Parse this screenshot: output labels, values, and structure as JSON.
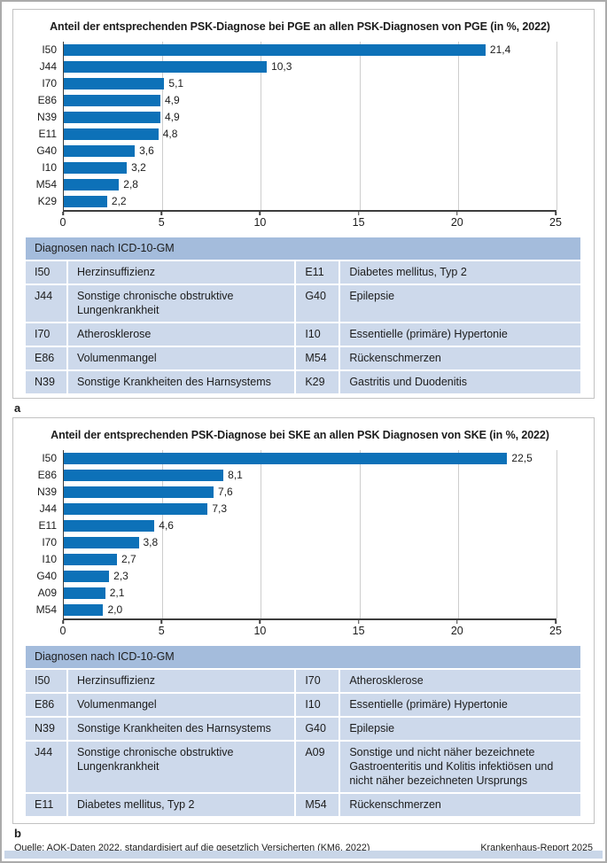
{
  "colors": {
    "bar_blue": "#0d71b8",
    "table_header_bg": "#a4bcdc",
    "table_row_bg": "#cdd9eb",
    "footer_band_bg": "#c9d6e8"
  },
  "labels": {
    "panel_a": "a",
    "panel_b": "b"
  },
  "footer": {
    "source": "Quelle: AOK-Daten 2022, standardisiert auf die gesetzlich Versicherten (KM6, 2022)",
    "report": "Krankenhaus-Report 2025"
  },
  "chart_data": [
    {
      "type": "bar",
      "orientation": "horizontal",
      "title": "Anteil der entsprechenden PSK-Diagnose bei PGE an allen PSK-Diagnosen von PGE (in %, 2022)",
      "categories": [
        "I50",
        "J44",
        "I70",
        "E86",
        "N39",
        "E11",
        "G40",
        "I10",
        "M54",
        "K29"
      ],
      "values": [
        21.4,
        10.3,
        5.1,
        4.9,
        4.9,
        4.8,
        3.6,
        3.2,
        2.8,
        2.2
      ],
      "value_labels": [
        "21,4",
        "10,3",
        "5,1",
        "4,9",
        "4,9",
        "4,8",
        "3,6",
        "3,2",
        "2,8",
        "2,2"
      ],
      "xlabel": "",
      "ylabel": "",
      "xlim": [
        0,
        25
      ],
      "xticks": [
        0,
        5,
        10,
        15,
        20,
        25
      ],
      "grid": true,
      "legend": false
    },
    {
      "type": "bar",
      "orientation": "horizontal",
      "title": "Anteil der entsprechenden PSK-Diagnose bei SKE an allen PSK Diagnosen von SKE (in %, 2022)",
      "categories": [
        "I50",
        "E86",
        "N39",
        "J44",
        "E11",
        "I70",
        "I10",
        "G40",
        "A09",
        "M54"
      ],
      "values": [
        22.5,
        8.1,
        7.6,
        7.3,
        4.6,
        3.8,
        2.7,
        2.3,
        2.1,
        2.0
      ],
      "value_labels": [
        "22,5",
        "8,1",
        "7,6",
        "7,3",
        "4,6",
        "3,8",
        "2,7",
        "2,3",
        "2,1",
        "2,0"
      ],
      "xlabel": "",
      "ylabel": "",
      "xlim": [
        0,
        25
      ],
      "xticks": [
        0,
        5,
        10,
        15,
        20,
        25
      ],
      "grid": true,
      "legend": false
    }
  ],
  "tables": [
    {
      "header": "Diagnosen nach ICD-10-GM",
      "rows": [
        [
          {
            "code": "I50",
            "label": "Herzinsuffizienz"
          },
          {
            "code": "E11",
            "label": "Diabetes mellitus, Typ 2"
          }
        ],
        [
          {
            "code": "J44",
            "label": "Sonstige chronische obstruktive Lungenkrankheit"
          },
          {
            "code": "G40",
            "label": "Epilepsie"
          }
        ],
        [
          {
            "code": "I70",
            "label": "Atherosklerose"
          },
          {
            "code": "I10",
            "label": "Essentielle (primäre) Hypertonie"
          }
        ],
        [
          {
            "code": "E86",
            "label": "Volumenmangel"
          },
          {
            "code": "M54",
            "label": "Rückenschmerzen"
          }
        ],
        [
          {
            "code": "N39",
            "label": "Sonstige Krankheiten des Harnsystems"
          },
          {
            "code": "K29",
            "label": "Gastritis und Duodenitis"
          }
        ]
      ]
    },
    {
      "header": "Diagnosen nach ICD-10-GM",
      "rows": [
        [
          {
            "code": "I50",
            "label": "Herzinsuffizienz"
          },
          {
            "code": "I70",
            "label": "Atherosklerose"
          }
        ],
        [
          {
            "code": "E86",
            "label": "Volumenmangel"
          },
          {
            "code": "I10",
            "label": "Essentielle (primäre) Hypertonie"
          }
        ],
        [
          {
            "code": "N39",
            "label": "Sonstige Krankheiten des Harnsystems"
          },
          {
            "code": "G40",
            "label": "Epilepsie"
          }
        ],
        [
          {
            "code": "J44",
            "label": "Sonstige chronische obstruktive Lungenkrankheit"
          },
          {
            "code": "A09",
            "label": "Sonstige und nicht näher bezeichnete Gastroenteritis und Kolitis infektiösen und nicht näher bezeichneten Ursprungs"
          }
        ],
        [
          {
            "code": "E11",
            "label": "Diabetes mellitus, Typ 2"
          },
          {
            "code": "M54",
            "label": "Rückenschmerzen"
          }
        ]
      ]
    }
  ]
}
